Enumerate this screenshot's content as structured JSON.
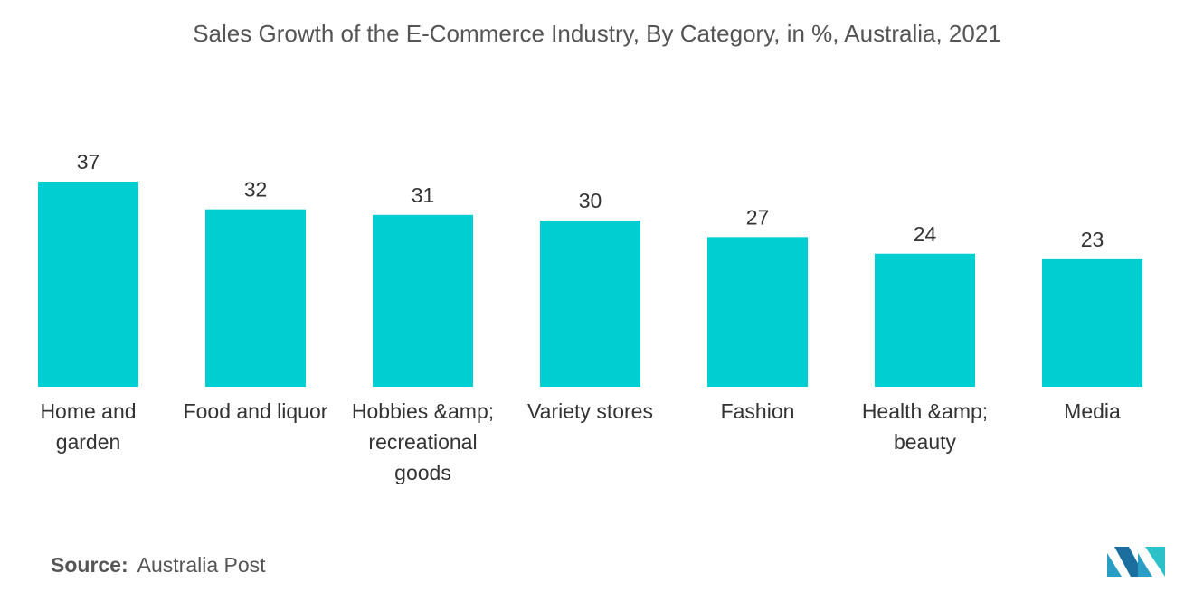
{
  "chart_data": {
    "type": "bar",
    "title": "Sales Growth of the E-Commerce Industry, By Category, in %, Australia, 2021",
    "categories": [
      "Home and garden",
      "Food and liquor",
      "Hobbies &amp; recreational goods",
      "Variety stores",
      "Fashion",
      "Health &amp; beauty",
      "Media"
    ],
    "values": [
      37,
      32,
      31,
      30,
      27,
      24,
      23
    ],
    "color": "#00ced1"
  },
  "source": {
    "label": "Source:",
    "text": "Australia Post"
  }
}
